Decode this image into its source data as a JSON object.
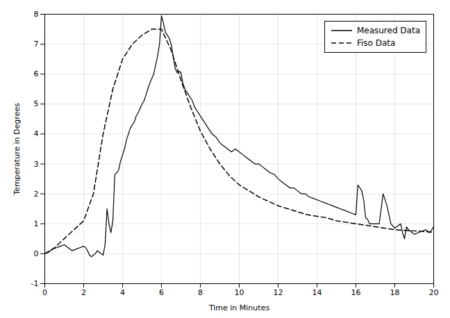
{
  "chart_data": {
    "type": "line",
    "xlabel": "Time in Minutes",
    "ylabel": "Temperature in Degrees",
    "xlim": [
      0,
      20
    ],
    "ylim": [
      -1,
      8
    ],
    "xticks": [
      0,
      2,
      4,
      6,
      8,
      10,
      12,
      14,
      16,
      18,
      20
    ],
    "yticks": [
      -1,
      0,
      1,
      2,
      3,
      4,
      5,
      6,
      7,
      8
    ],
    "grid": true,
    "legend": "upper right",
    "series": [
      {
        "name": "Measured Data",
        "color": "#000000",
        "line_style": "solid",
        "x": [
          0.0,
          0.2,
          0.4,
          0.6,
          0.8,
          1.0,
          1.2,
          1.4,
          1.6,
          1.8,
          2.0,
          2.1,
          2.2,
          2.3,
          2.4,
          2.5,
          2.6,
          2.7,
          2.8,
          2.9,
          3.0,
          3.1,
          3.2,
          3.3,
          3.4,
          3.5,
          3.6,
          3.7,
          3.8,
          3.9,
          4.0,
          4.1,
          4.2,
          4.3,
          4.4,
          4.5,
          4.6,
          4.7,
          4.8,
          4.9,
          5.0,
          5.1,
          5.2,
          5.3,
          5.4,
          5.5,
          5.6,
          5.7,
          5.8,
          5.9,
          6.0,
          6.1,
          6.2,
          6.3,
          6.4,
          6.5,
          6.6,
          6.7,
          6.8,
          6.9,
          7.0,
          7.1,
          7.2,
          7.3,
          7.4,
          7.5,
          7.6,
          7.7,
          7.8,
          7.9,
          8.0,
          8.2,
          8.4,
          8.6,
          8.8,
          9.0,
          9.2,
          9.4,
          9.6,
          9.8,
          10.0,
          10.2,
          10.4,
          10.6,
          10.8,
          11.0,
          11.2,
          11.4,
          11.6,
          11.8,
          12.0,
          12.2,
          12.4,
          12.6,
          12.8,
          13.0,
          13.2,
          13.4,
          13.6,
          13.8,
          14.0,
          14.2,
          14.4,
          14.6,
          14.8,
          15.0,
          15.2,
          15.4,
          15.6,
          15.8,
          16.0,
          16.1,
          16.2,
          16.3,
          16.4,
          16.5,
          16.6,
          16.7,
          16.8,
          17.0,
          17.2,
          17.4,
          17.6,
          17.8,
          18.0,
          18.1,
          18.2,
          18.3,
          18.4,
          18.5,
          18.6,
          18.7,
          18.8,
          18.9,
          19.0,
          19.2,
          19.4,
          19.6,
          19.8,
          20.0
        ],
        "values": [
          0.0,
          0.05,
          0.15,
          0.2,
          0.25,
          0.3,
          0.2,
          0.1,
          0.15,
          0.2,
          0.25,
          0.2,
          0.1,
          -0.05,
          -0.1,
          -0.05,
          0.0,
          0.1,
          0.05,
          0.0,
          -0.05,
          0.3,
          1.5,
          1.0,
          0.7,
          1.1,
          2.65,
          2.7,
          2.8,
          3.1,
          3.3,
          3.5,
          3.8,
          4.0,
          4.2,
          4.3,
          4.4,
          4.6,
          4.7,
          4.85,
          5.0,
          5.1,
          5.3,
          5.5,
          5.7,
          5.85,
          6.0,
          6.3,
          6.6,
          7.0,
          7.95,
          7.7,
          7.4,
          7.3,
          7.2,
          7.0,
          6.6,
          6.2,
          6.05,
          6.1,
          6.05,
          5.7,
          5.5,
          5.4,
          5.3,
          5.2,
          5.1,
          4.9,
          4.8,
          4.7,
          4.6,
          4.4,
          4.2,
          4.0,
          3.9,
          3.7,
          3.6,
          3.5,
          3.4,
          3.5,
          3.4,
          3.3,
          3.2,
          3.1,
          3.0,
          3.0,
          2.9,
          2.8,
          2.7,
          2.65,
          2.5,
          2.4,
          2.3,
          2.2,
          2.2,
          2.1,
          2.0,
          2.0,
          1.9,
          1.85,
          1.8,
          1.75,
          1.7,
          1.65,
          1.6,
          1.55,
          1.5,
          1.45,
          1.4,
          1.35,
          1.3,
          2.3,
          2.2,
          2.1,
          1.8,
          1.2,
          1.15,
          1.0,
          1.0,
          1.0,
          1.0,
          2.0,
          1.6,
          1.0,
          0.85,
          0.9,
          0.95,
          1.0,
          0.7,
          0.5,
          0.9,
          0.8,
          0.75,
          0.7,
          0.65,
          0.7,
          0.75,
          0.8,
          0.7,
          0.9
        ]
      },
      {
        "name": "Fiso Data",
        "color": "#000000",
        "line_style": "dashed",
        "x": [
          0.0,
          0.5,
          1.0,
          1.5,
          2.0,
          2.5,
          3.0,
          3.5,
          4.0,
          4.5,
          5.0,
          5.5,
          6.0,
          6.5,
          7.0,
          7.5,
          8.0,
          8.5,
          9.0,
          9.5,
          10.0,
          10.5,
          11.0,
          11.5,
          12.0,
          12.5,
          13.0,
          13.5,
          14.0,
          14.5,
          15.0,
          15.5,
          16.0,
          16.5,
          17.0,
          17.5,
          18.0,
          18.5,
          19.0,
          19.5,
          20.0
        ],
        "values": [
          0.0,
          0.2,
          0.5,
          0.8,
          1.1,
          2.0,
          4.0,
          5.5,
          6.5,
          7.0,
          7.3,
          7.5,
          7.5,
          6.8,
          5.8,
          4.9,
          4.1,
          3.5,
          3.0,
          2.6,
          2.3,
          2.1,
          1.9,
          1.75,
          1.6,
          1.5,
          1.4,
          1.3,
          1.25,
          1.2,
          1.1,
          1.05,
          1.0,
          0.95,
          0.9,
          0.85,
          0.8,
          0.78,
          0.76,
          0.74,
          0.72
        ]
      }
    ]
  }
}
